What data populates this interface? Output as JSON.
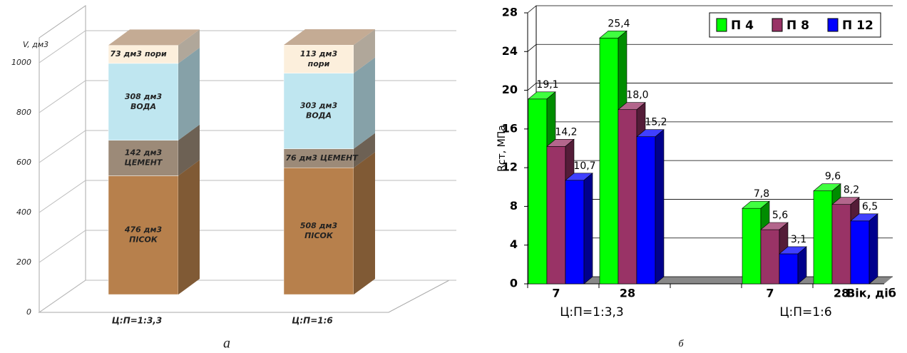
{
  "chart_data": [
    {
      "type": "bar",
      "stacked": true,
      "caption": "а",
      "ylabel": "V, дм3",
      "categories": [
        "Ц:П=1:3,3",
        "Ц:П=1:6"
      ],
      "ylim": [
        0,
        1100
      ],
      "yticks": [
        0,
        200,
        400,
        600,
        800,
        1000
      ],
      "series": [
        {
          "name": "ПІСОК",
          "color": "#b7804c",
          "values": [
            476,
            508
          ],
          "value_labels": [
            "476 дм3",
            "508 дм3"
          ]
        },
        {
          "name": "ЦЕМЕНТ",
          "color": "#9c8a78",
          "values": [
            142,
            76
          ],
          "value_labels": [
            "142 дм3",
            "76 дм3"
          ]
        },
        {
          "name": "ВОДА",
          "color": "#bfe6f0",
          "values": [
            308,
            303
          ],
          "value_labels": [
            "308 дм3",
            "303 дм3"
          ]
        },
        {
          "name": "пори",
          "color": "#fcefdc",
          "values": [
            73,
            113
          ],
          "value_labels": [
            "73 дм3",
            "113 дм3"
          ]
        }
      ]
    },
    {
      "type": "bar",
      "stacked": false,
      "caption": "б",
      "ylabel": "Rст, МПа",
      "xlabel": "Вік, діб",
      "categories": [
        "7",
        "28",
        null,
        "7",
        "28"
      ],
      "group_labels": [
        "Ц:П=1:3,3",
        "Ц:П=1:6"
      ],
      "ylim": [
        0,
        28
      ],
      "yticks": [
        0,
        4,
        8,
        12,
        16,
        20,
        24,
        28
      ],
      "grid": true,
      "legend": "top-right",
      "series": [
        {
          "name": "П 4",
          "color": "#00ff00",
          "values": [
            19.1,
            25.4,
            null,
            7.8,
            9.6
          ],
          "value_labels": [
            "19,1",
            "25,4",
            null,
            "7,8",
            "9,6"
          ]
        },
        {
          "name": "П 8",
          "color": "#993366",
          "values": [
            14.2,
            18.0,
            null,
            5.6,
            8.2
          ],
          "value_labels": [
            "14,2",
            "18,0",
            null,
            "5,6",
            "8,2"
          ]
        },
        {
          "name": "П 12",
          "color": "#0000ff",
          "values": [
            10.7,
            15.2,
            null,
            3.1,
            6.5
          ],
          "value_labels": [
            "10,7",
            "15,2",
            null,
            "3,1",
            "6,5"
          ]
        }
      ]
    }
  ]
}
